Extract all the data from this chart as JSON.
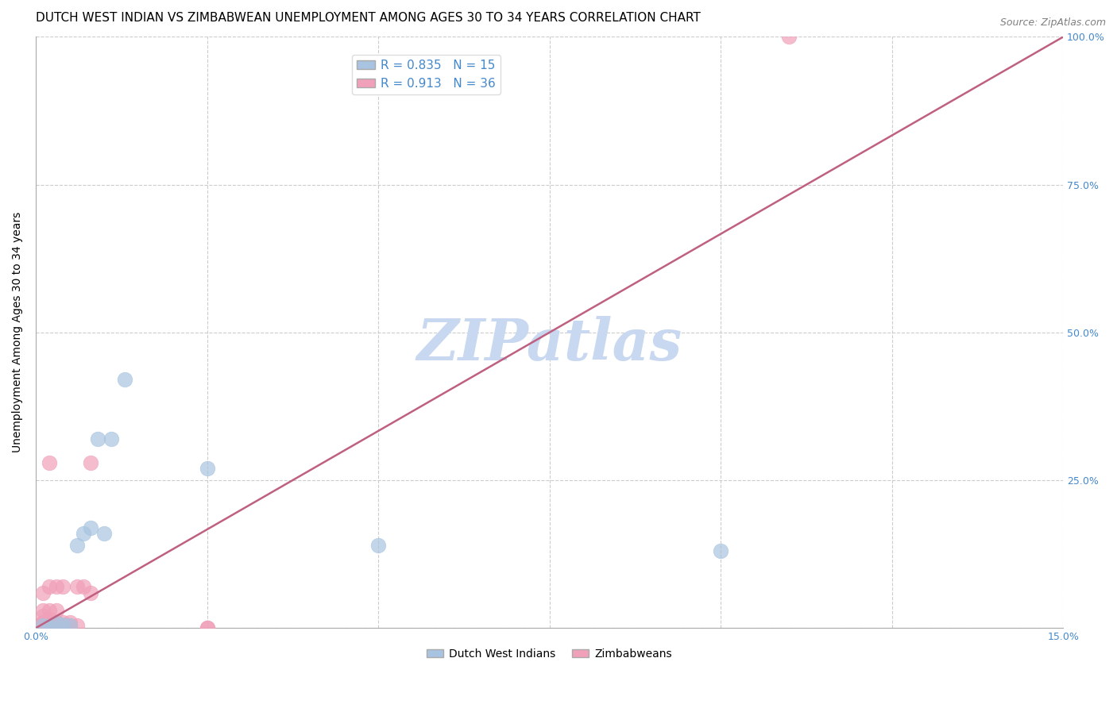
{
  "title": "DUTCH WEST INDIAN VS ZIMBABWEAN UNEMPLOYMENT AMONG AGES 30 TO 34 YEARS CORRELATION CHART",
  "source": "Source: ZipAtlas.com",
  "ylabel": "Unemployment Among Ages 30 to 34 years",
  "xlim": [
    0,
    0.15
  ],
  "ylim": [
    0,
    1.0
  ],
  "xticks": [
    0.0,
    0.025,
    0.05,
    0.075,
    0.1,
    0.125,
    0.15
  ],
  "xticklabels": [
    "0.0%",
    "",
    "",
    "",
    "",
    "",
    "15.0%"
  ],
  "yticks": [
    0.0,
    0.25,
    0.5,
    0.75,
    1.0
  ],
  "yticklabels": [
    "",
    "25.0%",
    "50.0%",
    "75.0%",
    "100.0%"
  ],
  "blue_color": "#a8c4e0",
  "pink_color": "#f0a0b8",
  "line_color": "#c06080",
  "legend_blue_R": "0.835",
  "legend_blue_N": "15",
  "legend_pink_R": "0.913",
  "legend_pink_N": "36",
  "legend_color": "#4488cc",
  "watermark": "ZIPatlas",
  "watermark_color": "#c8d8f0",
  "dutch_points": [
    [
      0.001,
      0.005
    ],
    [
      0.002,
      0.003
    ],
    [
      0.003,
      0.008
    ],
    [
      0.004,
      0.006
    ],
    [
      0.005,
      0.005
    ],
    [
      0.006,
      0.14
    ],
    [
      0.007,
      0.16
    ],
    [
      0.008,
      0.17
    ],
    [
      0.009,
      0.32
    ],
    [
      0.01,
      0.16
    ],
    [
      0.011,
      0.32
    ],
    [
      0.013,
      0.42
    ],
    [
      0.025,
      0.27
    ],
    [
      0.05,
      0.14
    ],
    [
      0.1,
      0.13
    ]
  ],
  "zimbabwean_points": [
    [
      0.001,
      0.005
    ],
    [
      0.001,
      0.003
    ],
    [
      0.001,
      0.007
    ],
    [
      0.001,
      0.005
    ],
    [
      0.001,
      0.004
    ],
    [
      0.001,
      0.008
    ],
    [
      0.001,
      0.01
    ],
    [
      0.001,
      0.02
    ],
    [
      0.001,
      0.03
    ],
    [
      0.001,
      0.06
    ],
    [
      0.002,
      0.005
    ],
    [
      0.002,
      0.008
    ],
    [
      0.002,
      0.01
    ],
    [
      0.002,
      0.015
    ],
    [
      0.002,
      0.03
    ],
    [
      0.002,
      0.07
    ],
    [
      0.002,
      0.005
    ],
    [
      0.003,
      0.005
    ],
    [
      0.003,
      0.01
    ],
    [
      0.003,
      0.03
    ],
    [
      0.003,
      0.07
    ],
    [
      0.004,
      0.005
    ],
    [
      0.004,
      0.01
    ],
    [
      0.004,
      0.07
    ],
    [
      0.005,
      0.005
    ],
    [
      0.005,
      0.01
    ],
    [
      0.006,
      0.005
    ],
    [
      0.006,
      0.07
    ],
    [
      0.007,
      0.07
    ],
    [
      0.008,
      0.06
    ],
    [
      0.008,
      0.28
    ],
    [
      0.025,
      0.0
    ],
    [
      0.025,
      0.0
    ],
    [
      0.11,
      1.0
    ],
    [
      0.002,
      0.28
    ],
    [
      0.002,
      0.005
    ]
  ],
  "regression_line_x": [
    0.0,
    0.15
  ],
  "regression_line_y": [
    0.0,
    1.0
  ],
  "title_fontsize": 11,
  "axis_label_fontsize": 10,
  "tick_fontsize": 9
}
